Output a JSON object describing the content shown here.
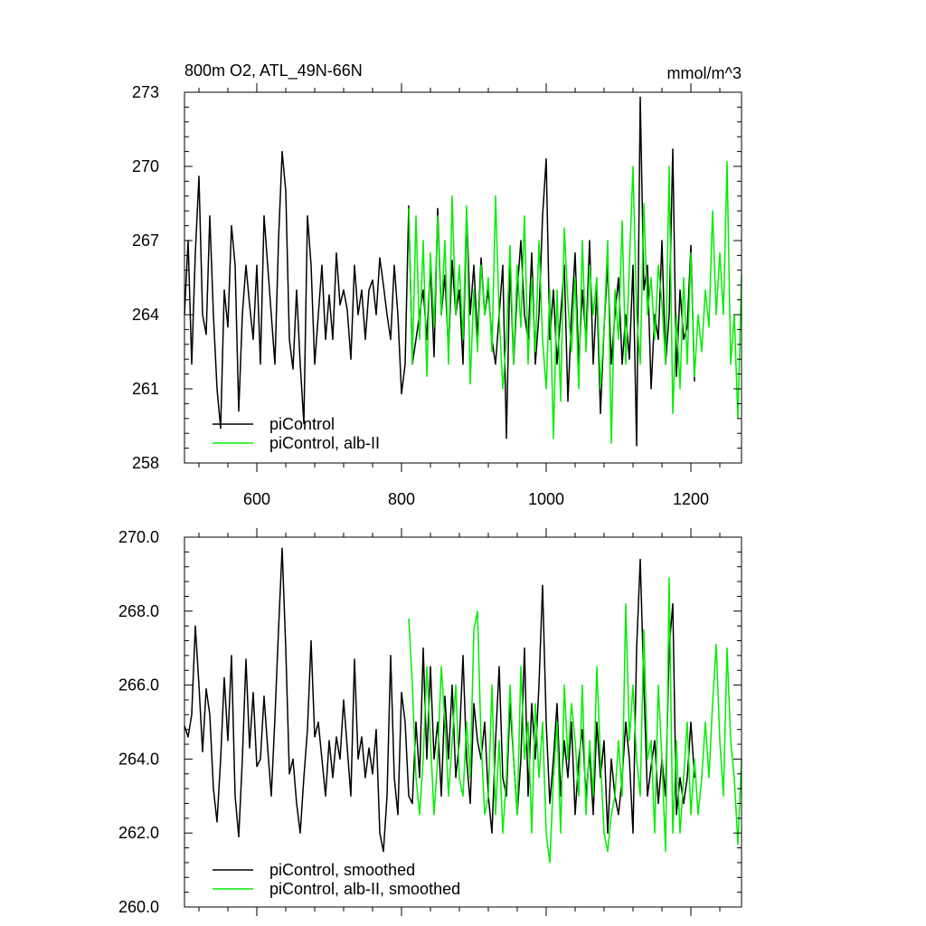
{
  "chart_data": [
    {
      "type": "line",
      "title": "800m O2, ATL_49N-66N",
      "units": "mmol/m^3",
      "xlim": [
        500,
        1270
      ],
      "ylim": [
        258,
        273
      ],
      "x_ticks": [
        600,
        800,
        1000,
        1200
      ],
      "x_tick_labels": [
        "600",
        "800",
        "1000",
        "1200"
      ],
      "y_ticks": [
        258,
        261,
        264,
        267,
        270,
        273
      ],
      "y_tick_labels": [
        "258",
        "261",
        "264",
        "267",
        "270",
        "273"
      ],
      "legend_placement": "bottom-left",
      "series": [
        {
          "name": "piControl",
          "color": "#000000",
          "x": [
            500,
            505,
            510,
            515,
            520,
            525,
            530,
            535,
            540,
            545,
            550,
            555,
            560,
            565,
            570,
            575,
            580,
            585,
            590,
            595,
            600,
            605,
            610,
            615,
            620,
            625,
            630,
            635,
            640,
            645,
            650,
            655,
            660,
            665,
            670,
            675,
            680,
            685,
            690,
            695,
            700,
            705,
            710,
            715,
            720,
            725,
            730,
            735,
            740,
            745,
            750,
            755,
            760,
            765,
            770,
            775,
            780,
            785,
            790,
            795,
            800,
            805,
            810,
            815,
            820,
            825,
            830,
            835,
            840,
            845,
            850,
            855,
            860,
            865,
            870,
            875,
            880,
            885,
            890,
            895,
            900,
            905,
            910,
            915,
            920,
            925,
            930,
            935,
            940,
            945,
            950,
            955,
            960,
            965,
            970,
            975,
            980,
            985,
            990,
            995,
            1000,
            1005,
            1010,
            1015,
            1020,
            1025,
            1030,
            1035,
            1040,
            1045,
            1050,
            1055,
            1060,
            1065,
            1070,
            1075,
            1080,
            1085,
            1090,
            1095,
            1100,
            1105,
            1110,
            1115,
            1120,
            1125,
            1130,
            1135,
            1140,
            1145,
            1150,
            1155,
            1160,
            1165,
            1170,
            1175,
            1180,
            1185,
            1190,
            1195,
            1200,
            1205
          ],
          "values": [
            264.0,
            267.0,
            262.0,
            266.5,
            269.6,
            264.0,
            263.2,
            268.0,
            264.0,
            261.0,
            259.4,
            265.0,
            263.5,
            267.6,
            266.0,
            260.1,
            264.0,
            266.0,
            264.4,
            263.0,
            266.0,
            262.0,
            268.0,
            266.0,
            264.0,
            262.0,
            267.0,
            270.6,
            269.0,
            263.0,
            261.8,
            265.0,
            262.0,
            259.6,
            268.0,
            266.0,
            262.0,
            264.0,
            266.0,
            263.0,
            264.8,
            263.0,
            266.5,
            264.4,
            265.0,
            264.2,
            262.2,
            266.0,
            264.0,
            265.0,
            263.0,
            265.0,
            265.4,
            264.0,
            266.3,
            265.2,
            264.0,
            263.0,
            266.0,
            264.0,
            260.8,
            262.0,
            268.4,
            262.0,
            263.0,
            264.0,
            265.0,
            263.0,
            266.0,
            262.3,
            268.3,
            264.0,
            265.6,
            262.5,
            266.2,
            264.0,
            265.0,
            262.0,
            268.2,
            264.0,
            266.0,
            263.0,
            266.3,
            264.0,
            265.0,
            263.0,
            262.0,
            264.0,
            266.0,
            259.0,
            266.0,
            262.0,
            265.0,
            267.0,
            264.0,
            263.0,
            266.5,
            262.0,
            264.0,
            268.0,
            270.3,
            263.0,
            265.0,
            262.0,
            264.0,
            266.0,
            260.5,
            264.0,
            266.5,
            262.0,
            265.0,
            263.0,
            267.0,
            262.0,
            265.0,
            260.0,
            263.5,
            266.0,
            262.0,
            264.0,
            265.5,
            262.0,
            264.0,
            262.2,
            266.0,
            258.7,
            272.8,
            265.0,
            266.0,
            261.0,
            264.0,
            263.0,
            267.0,
            262.0,
            264.0,
            270.7,
            261.5,
            265.0,
            263.0,
            263.5,
            266.8,
            261.3
          ]
        },
        {
          "name": "piControl, alb-II",
          "color": "#00ee00",
          "x": [
            810,
            815,
            820,
            825,
            830,
            835,
            840,
            845,
            850,
            855,
            860,
            865,
            870,
            875,
            880,
            885,
            890,
            895,
            900,
            905,
            910,
            915,
            920,
            925,
            930,
            935,
            940,
            945,
            950,
            955,
            960,
            965,
            970,
            975,
            980,
            985,
            990,
            995,
            1000,
            1005,
            1010,
            1015,
            1020,
            1025,
            1030,
            1035,
            1040,
            1045,
            1050,
            1055,
            1060,
            1065,
            1070,
            1075,
            1080,
            1085,
            1090,
            1095,
            1100,
            1105,
            1110,
            1115,
            1120,
            1125,
            1130,
            1135,
            1140,
            1145,
            1150,
            1155,
            1160,
            1165,
            1170,
            1175,
            1180,
            1185,
            1190,
            1195,
            1200,
            1205,
            1210,
            1215,
            1220,
            1225,
            1230,
            1235,
            1240,
            1245,
            1250,
            1255,
            1260,
            1265,
            1270
          ],
          "values": [
            268.3,
            262.0,
            268.0,
            263.0,
            267.0,
            261.5,
            266.5,
            263.5,
            268.0,
            264.0,
            267.0,
            262.0,
            268.8,
            264.0,
            266.0,
            263.0,
            268.4,
            261.2,
            265.0,
            262.5,
            266.0,
            264.0,
            265.5,
            262.5,
            268.8,
            264.0,
            261.0,
            263.0,
            266.8,
            262.0,
            266.0,
            263.5,
            268.0,
            262.0,
            265.5,
            262.5,
            267.0,
            263.0,
            261.0,
            265.0,
            259.0,
            265.0,
            260.5,
            267.5,
            264.5,
            262.5,
            265.5,
            261.0,
            267.0,
            262.5,
            266.0,
            264.0,
            265.5,
            261.0,
            263.5,
            267.0,
            258.8,
            265.0,
            263.0,
            267.8,
            262.0,
            266.0,
            270.0,
            264.0,
            262.0,
            268.5,
            264.0,
            265.5,
            263.0,
            266.0,
            264.5,
            262.0,
            270.0,
            260.0,
            264.0,
            261.0,
            265.5,
            262.0,
            266.5,
            261.5,
            264.0,
            262.5,
            265.0,
            263.5,
            268.2,
            264.0,
            266.5,
            264.0,
            270.2,
            262.0,
            264.0,
            259.8,
            265.6
          ]
        }
      ]
    },
    {
      "type": "line",
      "xlim": [
        500,
        1270
      ],
      "ylim": [
        260,
        270
      ],
      "x_ticks": [
        600,
        800,
        1000,
        1200
      ],
      "y_ticks": [
        260,
        262,
        264,
        266,
        268,
        270
      ],
      "y_tick_labels": [
        "260.0",
        "262.0",
        "264.0",
        "266.0",
        "268.0",
        "270.0"
      ],
      "legend_placement": "bottom-left",
      "series": [
        {
          "name": "piControl, smoothed",
          "color": "#000000",
          "x": [
            500,
            505,
            510,
            515,
            520,
            525,
            530,
            535,
            540,
            545,
            550,
            555,
            560,
            565,
            570,
            575,
            580,
            585,
            590,
            595,
            600,
            605,
            610,
            615,
            620,
            625,
            630,
            635,
            640,
            645,
            650,
            655,
            660,
            665,
            670,
            675,
            680,
            685,
            690,
            695,
            700,
            705,
            710,
            715,
            720,
            725,
            730,
            735,
            740,
            745,
            750,
            755,
            760,
            765,
            770,
            775,
            780,
            785,
            790,
            795,
            800,
            805,
            810,
            815,
            820,
            825,
            830,
            835,
            840,
            845,
            850,
            855,
            860,
            865,
            870,
            875,
            880,
            885,
            890,
            895,
            900,
            905,
            910,
            915,
            920,
            925,
            930,
            935,
            940,
            945,
            950,
            955,
            960,
            965,
            970,
            975,
            980,
            985,
            990,
            995,
            1000,
            1005,
            1010,
            1015,
            1020,
            1025,
            1030,
            1035,
            1040,
            1045,
            1050,
            1055,
            1060,
            1065,
            1070,
            1075,
            1080,
            1085,
            1090,
            1095,
            1100,
            1105,
            1110,
            1115,
            1120,
            1125,
            1130,
            1135,
            1140,
            1145,
            1150,
            1155,
            1160,
            1165,
            1170,
            1175,
            1180,
            1185,
            1190,
            1195,
            1200,
            1205
          ],
          "values": [
            264.9,
            264.6,
            265.2,
            267.6,
            266.0,
            264.2,
            265.9,
            265.2,
            263.2,
            262.3,
            264.0,
            266.2,
            264.5,
            266.8,
            263.0,
            261.9,
            264.0,
            266.7,
            264.3,
            265.8,
            263.8,
            264.0,
            265.7,
            264.3,
            263.0,
            265.1,
            267.5,
            269.7,
            267.0,
            263.6,
            264.0,
            262.8,
            262.0,
            263.5,
            264.8,
            267.2,
            264.6,
            265.0,
            264.0,
            263.0,
            264.5,
            263.5,
            264.6,
            264.0,
            265.6,
            264.3,
            263.0,
            266.7,
            264.0,
            264.6,
            263.5,
            264.3,
            263.6,
            264.8,
            262.0,
            261.5,
            263.0,
            266.8,
            263.5,
            262.5,
            265.8,
            265.0,
            263.0,
            262.8,
            265.0,
            263.5,
            267.0,
            264.0,
            266.5,
            264.0,
            265.0,
            263.0,
            265.7,
            264.0,
            266.0,
            263.5,
            264.5,
            266.8,
            264.0,
            262.8,
            265.5,
            264.5,
            264.0,
            265.0,
            263.0,
            262.0,
            264.5,
            266.5,
            263.5,
            263.0,
            265.5,
            264.0,
            262.5,
            264.0,
            267.0,
            263.0,
            265.5,
            264.0,
            266.0,
            268.7,
            265.0,
            262.8,
            264.0,
            265.5,
            263.0,
            264.5,
            263.5,
            265.0,
            262.5,
            264.0,
            264.8,
            263.0,
            264.2,
            262.5,
            265.0,
            263.5,
            264.5,
            262.0,
            264.0,
            263.0,
            262.5,
            263.5,
            265.0,
            264.0,
            262.0,
            267.0,
            269.4,
            266.0,
            263.0,
            263.8,
            264.5,
            262.8,
            264.0,
            263.0,
            267.0,
            268.2,
            262.5,
            263.5,
            262.8,
            263.5,
            265.0,
            263.5
          ]
        },
        {
          "name": "piControl, alb-II, smoothed",
          "color": "#00ee00",
          "x": [
            810,
            815,
            820,
            825,
            830,
            835,
            840,
            845,
            850,
            855,
            860,
            865,
            870,
            875,
            880,
            885,
            890,
            895,
            900,
            905,
            910,
            915,
            920,
            925,
            930,
            935,
            940,
            945,
            950,
            955,
            960,
            965,
            970,
            975,
            980,
            985,
            990,
            995,
            1000,
            1005,
            1010,
            1015,
            1020,
            1025,
            1030,
            1035,
            1040,
            1045,
            1050,
            1055,
            1060,
            1065,
            1070,
            1075,
            1080,
            1085,
            1090,
            1095,
            1100,
            1105,
            1110,
            1115,
            1120,
            1125,
            1130,
            1135,
            1140,
            1145,
            1150,
            1155,
            1160,
            1165,
            1170,
            1175,
            1180,
            1185,
            1190,
            1195,
            1200,
            1205,
            1210,
            1215,
            1220,
            1225,
            1230,
            1235,
            1240,
            1245,
            1250,
            1255,
            1260,
            1265,
            1270
          ],
          "values": [
            267.8,
            266.0,
            263.5,
            262.5,
            264.0,
            266.5,
            264.5,
            262.5,
            264.0,
            266.5,
            265.0,
            263.0,
            264.5,
            266.0,
            263.5,
            263.0,
            265.0,
            263.5,
            267.5,
            268.0,
            264.5,
            262.5,
            263.0,
            266.0,
            262.5,
            264.5,
            262.0,
            263.5,
            266.0,
            264.0,
            262.5,
            266.5,
            264.0,
            265.0,
            262.0,
            265.5,
            263.5,
            265.0,
            262.0,
            261.2,
            263.5,
            265.0,
            262.0,
            266.0,
            264.0,
            265.5,
            264.5,
            263.0,
            266.0,
            262.5,
            264.5,
            263.0,
            266.5,
            264.0,
            262.0,
            261.5,
            262.5,
            263.0,
            264.5,
            263.0,
            268.2,
            264.5,
            266.0,
            264.0,
            263.0,
            267.5,
            264.0,
            264.5,
            262.0,
            266.0,
            264.0,
            261.5,
            268.9,
            262.0,
            264.5,
            262.0,
            263.5,
            265.0,
            262.5,
            264.0,
            262.5,
            263.5,
            265.0,
            263.5,
            265.5,
            267.1,
            264.5,
            263.0,
            267.0,
            264.5,
            263.5,
            261.7,
            264.0
          ]
        }
      ]
    }
  ]
}
